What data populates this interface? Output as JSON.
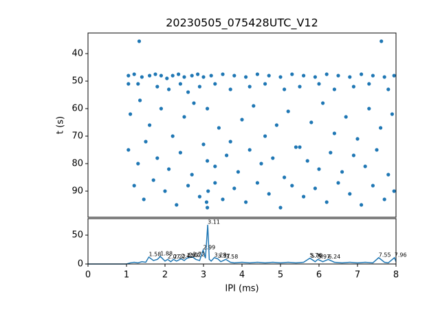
{
  "chart_data": [
    {
      "type": "scatter",
      "title": "20230505_075428UTC_V12",
      "y_label": "t (s)",
      "color": "#1f77b4",
      "x": [
        1.33,
        7.62,
        1.05,
        1.2,
        1.4,
        1.6,
        1.75,
        1.9,
        2.05,
        2.2,
        2.35,
        2.5,
        2.7,
        2.85,
        3.0,
        3.2,
        3.5,
        3.8,
        4.1,
        4.4,
        4.7,
        5.0,
        5.3,
        5.6,
        5.9,
        6.2,
        6.5,
        6.8,
        7.1,
        7.4,
        7.7,
        7.95,
        1.05,
        1.3,
        1.8,
        2.1,
        2.4,
        2.6,
        2.9,
        3.3,
        3.7,
        4.2,
        4.6,
        5.1,
        5.5,
        6.0,
        6.4,
        6.9,
        7.3,
        7.8,
        1.1,
        1.35,
        1.6,
        1.9,
        2.2,
        2.5,
        2.75,
        3.1,
        3.4,
        3.7,
        4.0,
        4.3,
        4.6,
        4.9,
        5.2,
        5.5,
        5.8,
        6.1,
        6.4,
        6.7,
        7.0,
        7.3,
        7.6,
        7.9,
        1.05,
        1.3,
        1.5,
        1.8,
        2.1,
        2.4,
        2.7,
        3.0,
        3.1,
        3.3,
        3.6,
        3.9,
        4.2,
        4.5,
        4.8,
        5.1,
        5.4,
        5.7,
        6.0,
        6.3,
        6.6,
        6.9,
        7.2,
        7.5,
        7.8,
        1.2,
        1.45,
        1.7,
        2.0,
        2.3,
        2.6,
        2.9,
        3.1,
        3.12,
        3.08,
        3.3,
        3.5,
        3.8,
        4.1,
        4.4,
        4.7,
        5.0,
        5.3,
        5.6,
        5.9,
        6.2,
        6.5,
        6.8,
        7.1,
        7.4,
        7.7,
        7.95
      ],
      "values": [
        35.5,
        35.5,
        48,
        47.5,
        48.5,
        48,
        47.5,
        48,
        49,
        48,
        47.5,
        48.5,
        48,
        47.5,
        48.5,
        48,
        47.5,
        48,
        48.5,
        47.5,
        48,
        48.5,
        47.5,
        48,
        48.5,
        47.5,
        48,
        48.5,
        47.5,
        48,
        48.5,
        48,
        51,
        51,
        52,
        53,
        51,
        54,
        52,
        51,
        53,
        52,
        51,
        53,
        52,
        51,
        53,
        52,
        51,
        53,
        62,
        57,
        66,
        60,
        70,
        63,
        58,
        60,
        67,
        72,
        64,
        59,
        70,
        66,
        61,
        74,
        65,
        58,
        69,
        63,
        71,
        60,
        67,
        62,
        75,
        80,
        72,
        78,
        82,
        76,
        84,
        73,
        79,
        81,
        77,
        83,
        75,
        80,
        78,
        85,
        74,
        79,
        82,
        76,
        83,
        77,
        81,
        75,
        84,
        88,
        93,
        86,
        90,
        95,
        88,
        92,
        96,
        90,
        94,
        87,
        93,
        89,
        94,
        87,
        91,
        96,
        88,
        92,
        89,
        94,
        87,
        91,
        95,
        88,
        93,
        90
      ],
      "xlim": [
        0,
        8
      ],
      "ylim": [
        99.5,
        32.5
      ],
      "yticks": [
        40,
        50,
        60,
        70,
        80,
        90
      ]
    },
    {
      "type": "line",
      "x_label": "IPI (ms)",
      "color": "#1f77b4",
      "x": [
        0,
        0.5,
        1.0,
        1.1,
        1.2,
        1.3,
        1.4,
        1.5,
        1.58,
        1.7,
        1.8,
        1.88,
        2.0,
        2.07,
        2.15,
        2.22,
        2.3,
        2.42,
        2.5,
        2.57,
        2.62,
        2.72,
        2.8,
        2.9,
        2.99,
        3.05,
        3.11,
        3.15,
        3.2,
        3.28,
        3.37,
        3.45,
        3.58,
        3.7,
        3.8,
        4.0,
        4.2,
        4.4,
        4.6,
        4.8,
        5.0,
        5.2,
        5.4,
        5.6,
        5.76,
        5.79,
        5.9,
        5.97,
        6.1,
        6.24,
        6.4,
        6.6,
        6.8,
        7.0,
        7.2,
        7.4,
        7.55,
        7.7,
        7.8,
        7.96,
        8.0
      ],
      "values": [
        0,
        0,
        0,
        2,
        3,
        2,
        4,
        3,
        12,
        6,
        8,
        13,
        5,
        8,
        4,
        8,
        5,
        9,
        6,
        10,
        11,
        12,
        8,
        6,
        24,
        10,
        68,
        8,
        5,
        11,
        9,
        4,
        8,
        3,
        2,
        3,
        2,
        3,
        2,
        3,
        2,
        3,
        2,
        3,
        10,
        9,
        4,
        8,
        4,
        8,
        3,
        2,
        3,
        2,
        3,
        2,
        11,
        3,
        2,
        11,
        4
      ],
      "peak_labels": [
        1.58,
        1.88,
        2.07,
        2.22,
        2.42,
        2.57,
        2.62,
        2.72,
        2.99,
        3.11,
        3.28,
        3.37,
        3.58,
        5.76,
        5.79,
        5.97,
        6.24,
        7.55,
        7.96
      ],
      "xlim": [
        0,
        8
      ],
      "ylim": [
        0,
        78.6
      ],
      "xticks": [
        0,
        1,
        2,
        3,
        4,
        5,
        6,
        7,
        8
      ],
      "yticks": [
        0,
        50
      ]
    }
  ]
}
